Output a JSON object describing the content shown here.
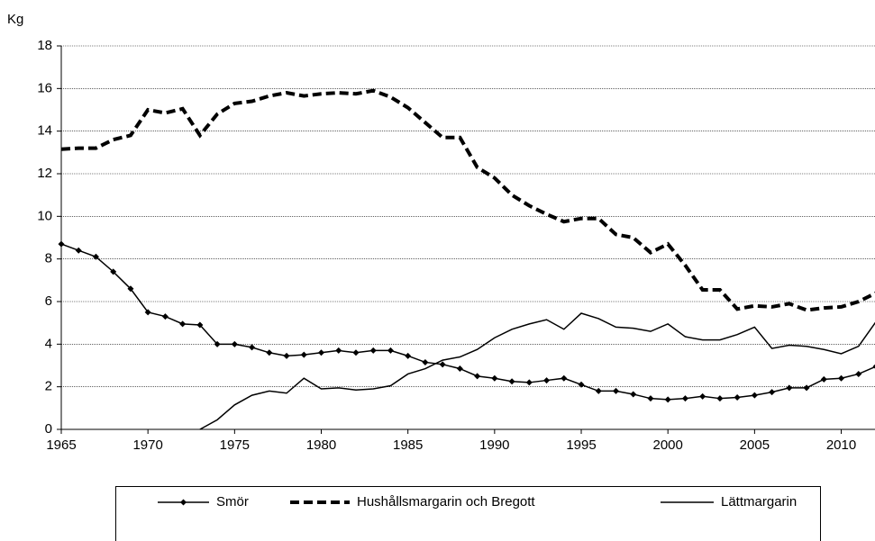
{
  "chart_data": {
    "type": "line",
    "y_label": "Kg",
    "x": [
      1965,
      1966,
      1967,
      1968,
      1969,
      1970,
      1971,
      1972,
      1973,
      1974,
      1975,
      1976,
      1977,
      1978,
      1979,
      1980,
      1981,
      1982,
      1983,
      1984,
      1985,
      1986,
      1987,
      1988,
      1989,
      1990,
      1991,
      1992,
      1993,
      1994,
      1995,
      1996,
      1997,
      1998,
      1999,
      2000,
      2001,
      2002,
      2003,
      2004,
      2005,
      2006,
      2007,
      2008,
      2009,
      2010,
      2011,
      2012
    ],
    "xlim": [
      1965,
      2012
    ],
    "xticks": [
      1965,
      1970,
      1975,
      1980,
      1985,
      1990,
      1995,
      2000,
      2005,
      2010
    ],
    "ylim": [
      0,
      18
    ],
    "yticks": [
      0,
      2,
      4,
      6,
      8,
      10,
      12,
      14,
      16,
      18
    ],
    "grid": true,
    "legend": "bottom",
    "series": [
      {
        "name": "Smör",
        "color": "#000000",
        "style": "marker",
        "values": [
          8.7,
          8.4,
          8.1,
          7.4,
          6.6,
          5.5,
          5.3,
          4.95,
          4.9,
          4.0,
          4.0,
          3.85,
          3.6,
          3.45,
          3.5,
          3.6,
          3.7,
          3.6,
          3.7,
          3.7,
          3.45,
          3.15,
          3.05,
          2.85,
          2.5,
          2.4,
          2.25,
          2.2,
          2.3,
          2.4,
          2.1,
          1.8,
          1.8,
          1.65,
          1.45,
          1.4,
          1.45,
          1.55,
          1.45,
          1.5,
          1.6,
          1.75,
          1.95,
          1.95,
          2.35,
          2.4,
          2.6,
          2.95
        ]
      },
      {
        "name": "Hushållsmargarin och Bregott",
        "color": "#000000",
        "style": "dashed",
        "values": [
          13.15,
          13.2,
          13.2,
          13.6,
          13.8,
          15.0,
          14.85,
          15.05,
          13.8,
          14.8,
          15.3,
          15.4,
          15.65,
          15.8,
          15.65,
          15.75,
          15.8,
          15.75,
          15.9,
          15.6,
          15.1,
          14.4,
          13.7,
          13.7,
          12.3,
          11.8,
          11.0,
          10.5,
          10.1,
          9.75,
          9.9,
          9.9,
          9.15,
          9.0,
          8.3,
          8.7,
          7.7,
          6.55,
          6.55,
          5.65,
          5.8,
          5.75,
          5.9,
          5.6,
          5.7,
          5.75,
          6.0,
          6.4
        ]
      },
      {
        "name": "Lättmargarin",
        "color": "#000000",
        "style": "solid",
        "values": [
          null,
          null,
          null,
          null,
          null,
          null,
          null,
          null,
          0,
          0.45,
          1.15,
          1.6,
          1.8,
          1.7,
          2.4,
          1.9,
          1.95,
          1.85,
          1.9,
          2.05,
          2.6,
          2.85,
          3.25,
          3.4,
          3.75,
          4.3,
          4.7,
          4.95,
          5.15,
          4.7,
          5.45,
          5.2,
          4.8,
          4.75,
          4.6,
          4.95,
          4.35,
          4.2,
          4.2,
          4.45,
          4.8,
          3.8,
          3.95,
          3.9,
          3.75,
          3.55,
          3.9,
          5.05
        ]
      }
    ]
  }
}
